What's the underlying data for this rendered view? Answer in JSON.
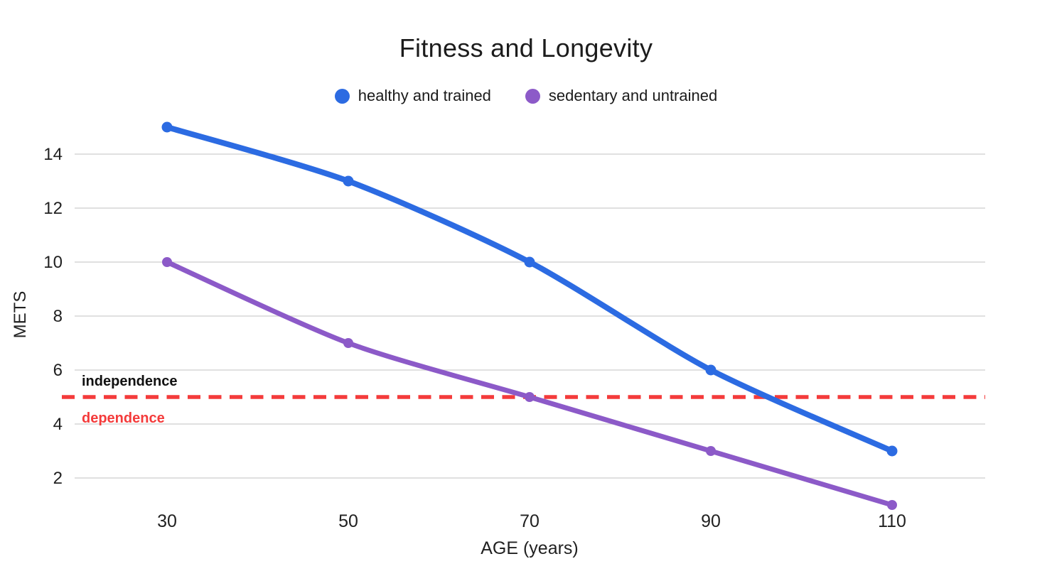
{
  "page": {
    "background_color": "#ffffff"
  },
  "chart_data": {
    "type": "line",
    "title": "Fitness and Longevity",
    "xlabel": "AGE (years)",
    "ylabel": "METS",
    "x": [
      30,
      50,
      70,
      90,
      110
    ],
    "x_tick_labels": [
      "30",
      "50",
      "70",
      "90",
      "110"
    ],
    "y_ticks": [
      2,
      4,
      6,
      8,
      10,
      12,
      14
    ],
    "xlim": [
      20,
      120
    ],
    "ylim": [
      1,
      15.5
    ],
    "grid": true,
    "grid_color": "#D6D6D6",
    "text_color": "#212121",
    "legend_position": "top",
    "series": [
      {
        "name": "healthy and trained",
        "color": "#2C6BE2",
        "values": [
          15,
          13,
          10,
          6,
          3
        ]
      },
      {
        "name": "sedentary and untrained",
        "color": "#8C5AC8",
        "values": [
          10,
          7,
          5,
          3,
          1
        ]
      }
    ],
    "threshold": {
      "value": 5,
      "style": "dashed",
      "color": "#F43B3B",
      "label_above": "independence",
      "label_above_color": "#111111",
      "label_below": "dependence"
    }
  }
}
